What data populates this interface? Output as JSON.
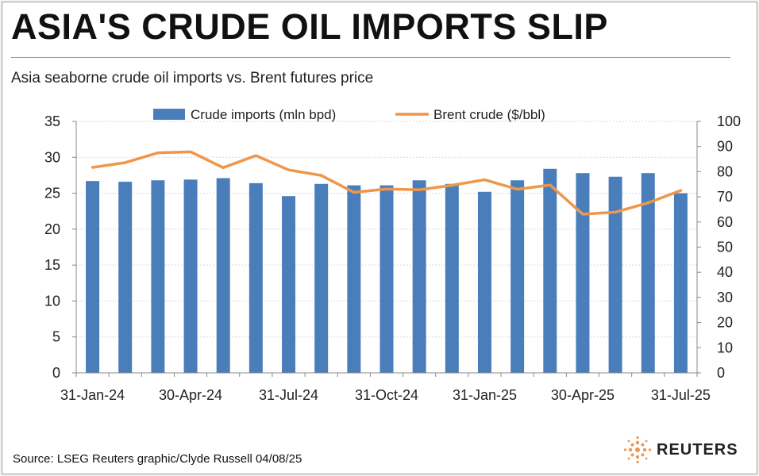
{
  "header": {
    "title": "ASIA'S CRUDE OIL IMPORTS SLIP",
    "subtitle": "Asia seaborne crude oil imports vs. Brent futures price"
  },
  "footer": {
    "source": "Source: LSEG    Reuters graphic/Clyde Russell 04/08/25",
    "logo_text": "REUTERS",
    "logo_icon": "reuters-dot-sphere-icon"
  },
  "colors": {
    "bar": "#4a7ebb",
    "line": "#f0964a",
    "grid": "#d9d9d9"
  },
  "chart_data": {
    "type": "bar+line",
    "categories": [
      "31-Jan-24",
      "29-Feb-24",
      "31-Mar-24",
      "30-Apr-24",
      "31-May-24",
      "30-Jun-24",
      "31-Jul-24",
      "31-Aug-24",
      "30-Sep-24",
      "31-Oct-24",
      "30-Nov-24",
      "31-Dec-24",
      "31-Jan-25",
      "28-Feb-25",
      "31-Mar-25",
      "30-Apr-25",
      "31-May-25",
      "30-Jun-25",
      "31-Jul-25"
    ],
    "x_tick_labels": [
      "31-Jan-24",
      "30-Apr-24",
      "31-Jul-24",
      "31-Oct-24",
      "31-Jan-25",
      "30-Apr-25",
      "31-Jul-25"
    ],
    "x_tick_indices": [
      0,
      3,
      6,
      9,
      12,
      15,
      18
    ],
    "series": [
      {
        "name": "Crude imports (mln bpd)",
        "type": "bar",
        "axis": "left",
        "values": [
          26.7,
          26.6,
          26.8,
          26.9,
          27.1,
          26.4,
          24.6,
          26.3,
          26.1,
          26.1,
          26.8,
          26.3,
          25.2,
          26.8,
          28.4,
          27.8,
          27.3,
          27.8,
          25.0
        ]
      },
      {
        "name": "Brent crude ($/bbl)",
        "type": "line",
        "axis": "right",
        "values": [
          81.7,
          83.6,
          87.5,
          87.9,
          81.6,
          86.4,
          80.7,
          78.5,
          71.8,
          73.1,
          72.8,
          74.6,
          76.8,
          73.0,
          74.7,
          63.1,
          63.9,
          67.6,
          72.5
        ]
      }
    ],
    "y_left": {
      "min": 0,
      "max": 35,
      "ticks": [
        0,
        5,
        10,
        15,
        20,
        25,
        30,
        35
      ]
    },
    "y_right": {
      "min": 0,
      "max": 100,
      "ticks": [
        0,
        10,
        20,
        30,
        40,
        50,
        60,
        70,
        80,
        90,
        100
      ]
    },
    "grid": true,
    "legend": "top"
  }
}
